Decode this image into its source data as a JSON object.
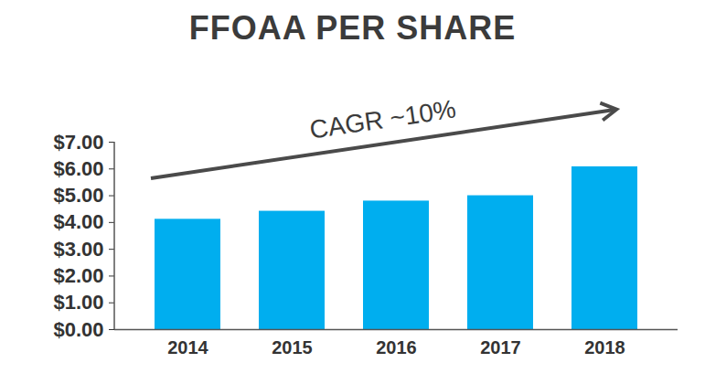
{
  "chart_data": {
    "type": "bar",
    "title": "FFOAA PER SHARE",
    "annotation": "CAGR ~10%",
    "categories": [
      "2014",
      "2015",
      "2016",
      "2017",
      "2018"
    ],
    "values": [
      4.12,
      4.42,
      4.8,
      5.0,
      6.08
    ],
    "color": "#00aeef",
    "ylim": [
      0,
      7
    ],
    "yticks": [
      {
        "value": 0,
        "label": "$0.00"
      },
      {
        "value": 1,
        "label": "$1.00"
      },
      {
        "value": 2,
        "label": "$2.00"
      },
      {
        "value": 3,
        "label": "$3.00"
      },
      {
        "value": 4,
        "label": "$4.00"
      },
      {
        "value": 5,
        "label": "$5.00"
      },
      {
        "value": 6,
        "label": "$6.00"
      },
      {
        "value": 7,
        "label": "$7.00"
      }
    ],
    "grid": false
  }
}
